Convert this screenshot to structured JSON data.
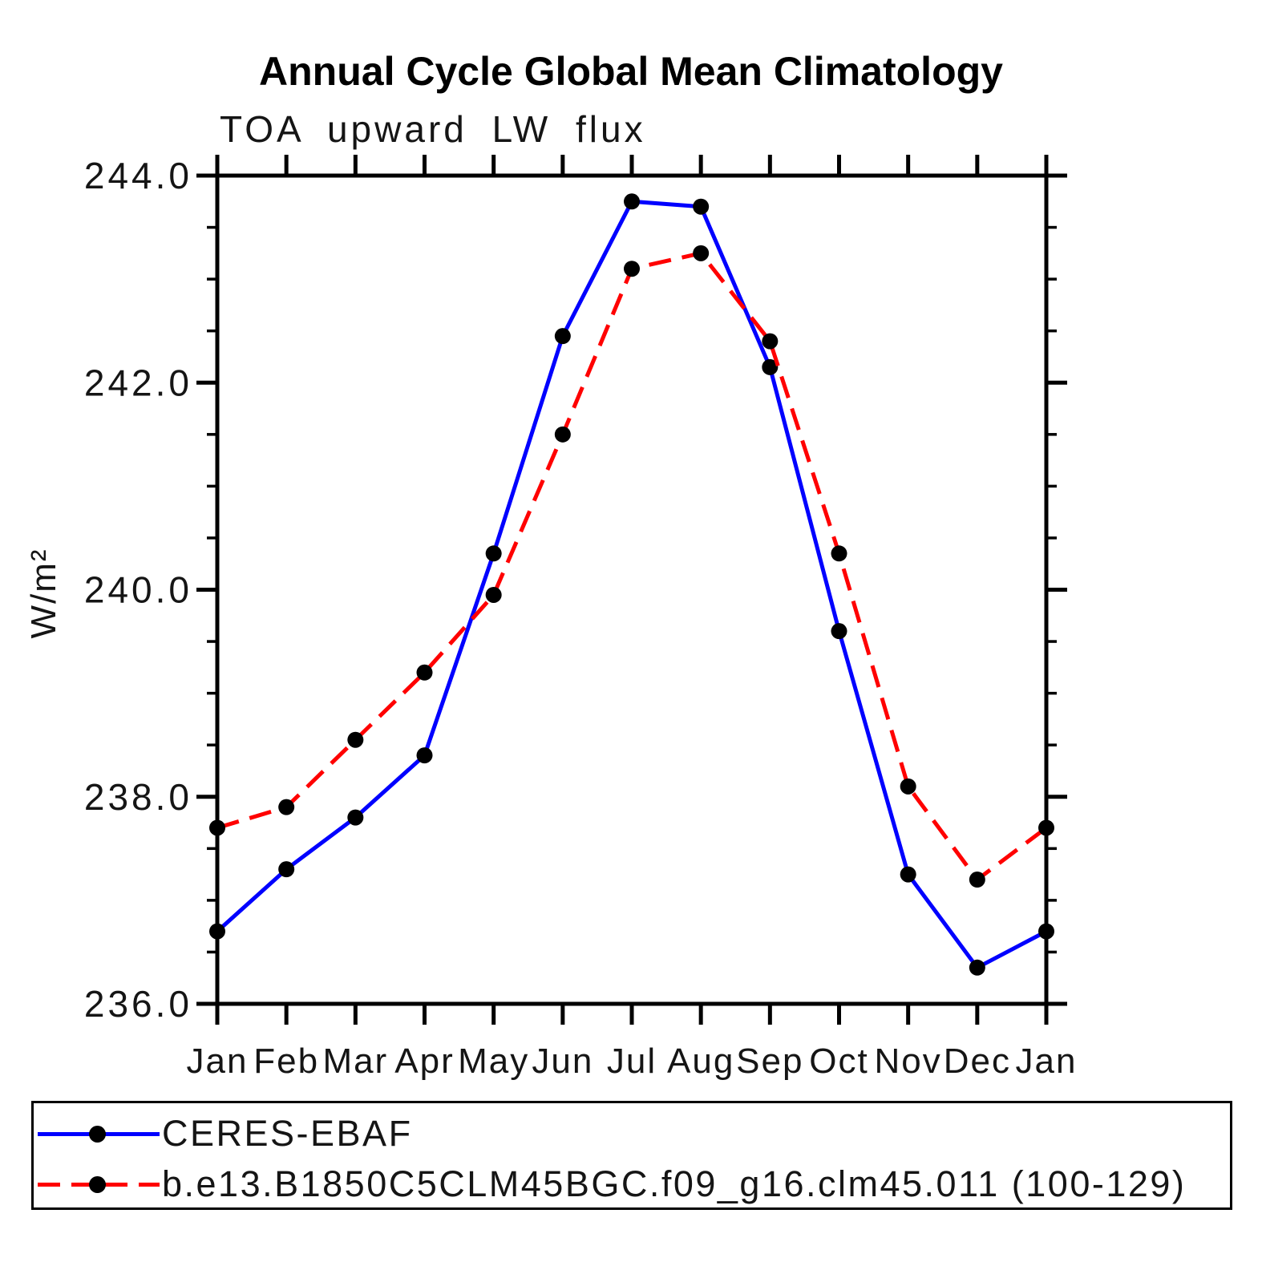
{
  "title": "Annual Cycle Global Mean Climatology",
  "subtitle": "TOA upward LW flux",
  "y_axis_label": "W/m²",
  "colors": {
    "axis": "#000000",
    "marker": "#000000",
    "obs_line": "#0000ff",
    "model_line": "#ff0000",
    "background": "#ffffff"
  },
  "legend": {
    "entries": [
      {
        "label": "CERES-EBAF",
        "color": "#0000ff",
        "style": "solid"
      },
      {
        "label": "b.e13.B1850C5CLM45BGC.f09_g16.clm45.011 (100-129)",
        "color": "#ff0000",
        "style": "dashed"
      }
    ]
  },
  "chart_data": {
    "type": "line",
    "title": "Annual Cycle Global Mean Climatology",
    "subtitle": "TOA upward LW flux",
    "xlabel": "",
    "ylabel": "W/m²",
    "categories": [
      "Jan",
      "Feb",
      "Mar",
      "Apr",
      "May",
      "Jun",
      "Jul",
      "Aug",
      "Sep",
      "Oct",
      "Nov",
      "Dec",
      "Jan"
    ],
    "series": [
      {
        "name": "CERES-EBAF",
        "color": "#0000ff",
        "line_style": "solid",
        "marker": "filled-circle",
        "values": [
          236.7,
          237.3,
          237.8,
          238.4,
          240.35,
          242.45,
          243.75,
          243.7,
          242.15,
          239.6,
          237.25,
          236.35,
          236.7
        ]
      },
      {
        "name": "b.e13.B1850C5CLM45BGC.f09_g16.clm45.011 (100-129)",
        "color": "#ff0000",
        "line_style": "dashed",
        "marker": "filled-circle",
        "values": [
          237.7,
          237.9,
          238.55,
          239.2,
          239.95,
          241.5,
          243.1,
          243.25,
          242.4,
          240.35,
          238.1,
          237.2,
          237.7
        ]
      }
    ],
    "ylim": [
      236.0,
      244.0
    ],
    "yticks": [
      236.0,
      238.0,
      240.0,
      242.0,
      244.0
    ],
    "ytick_labels": [
      "236.0",
      "238.0",
      "240.0",
      "242.0",
      "244.0"
    ],
    "y_minor_tick_interval": 0.5,
    "grid": false,
    "legend_position": "bottom"
  }
}
